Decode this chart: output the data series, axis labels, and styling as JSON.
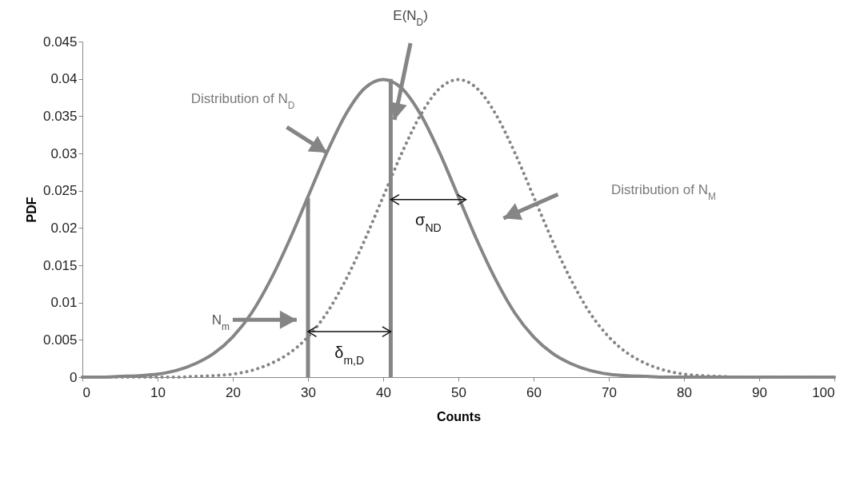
{
  "chart_data": {
    "type": "line",
    "xlabel": "Counts",
    "ylabel": "PDF",
    "xlim": [
      0,
      100
    ],
    "xticks": [
      0,
      10,
      20,
      30,
      40,
      50,
      60,
      70,
      80,
      90,
      100
    ],
    "ylim": [
      0,
      0.045
    ],
    "yticks": [
      0,
      0.005,
      0.01,
      0.015,
      0.02,
      0.025,
      0.03,
      0.035,
      0.04,
      0.045
    ],
    "grid": false,
    "x": [
      0,
      2.5,
      5,
      7.5,
      10,
      12.5,
      15,
      17.5,
      20,
      22.5,
      25,
      27.5,
      30,
      32.5,
      35,
      37.5,
      40,
      42.5,
      45,
      47.5,
      50,
      52.5,
      55,
      57.5,
      60,
      62.5,
      65,
      67.5,
      70,
      72.5,
      75,
      77.5,
      80,
      82.5,
      85,
      87.5,
      90,
      92.5,
      95,
      97.5,
      100
    ],
    "series": [
      {
        "color": "#858585",
        "line_style": "solid",
        "values": [
          0,
          0,
          0.0001,
          0.0002,
          0.0004,
          0.0009,
          0.0018,
          0.0032,
          0.0054,
          0.0086,
          0.013,
          0.0183,
          0.0242,
          0.0301,
          0.0352,
          0.0387,
          0.0399,
          0.0387,
          0.0352,
          0.0301,
          0.0242,
          0.0183,
          0.013,
          0.0086,
          0.0054,
          0.0032,
          0.0018,
          0.0009,
          0.0004,
          0.0002,
          0.0001,
          0,
          0,
          0,
          0,
          0,
          0,
          0,
          0,
          0,
          0
        ]
      },
      {
        "color": "#858585",
        "line_style": "dotted",
        "values": [
          0,
          0,
          0,
          0,
          0,
          0,
          0.0001,
          0.0002,
          0.0004,
          0.0009,
          0.0018,
          0.0032,
          0.0054,
          0.0086,
          0.013,
          0.0183,
          0.0242,
          0.0301,
          0.0352,
          0.0387,
          0.0399,
          0.0387,
          0.0352,
          0.0301,
          0.0242,
          0.0183,
          0.013,
          0.0086,
          0.0054,
          0.0032,
          0.0018,
          0.0009,
          0.0004,
          0.0002,
          0.0001,
          0,
          0,
          0,
          0,
          0,
          0
        ]
      },
      {
        "type": "bar",
        "color": "#858585",
        "x": [
          30
        ],
        "values": [
          0.024
        ]
      },
      {
        "type": "bar",
        "color": "#858585",
        "x": [
          41
        ],
        "values": [
          0.04
        ]
      }
    ],
    "annotations": [
      "Distribution of N$_{D}$",
      {
        "text": "E(N$_{D}$)",
        "x": 41.5,
        "y": 0.0345
      },
      "Distribution of N$_{M}$",
      "N$_{m}$",
      "σ$_{ND}$",
      "δ$_{m,D}$"
    ]
  }
}
